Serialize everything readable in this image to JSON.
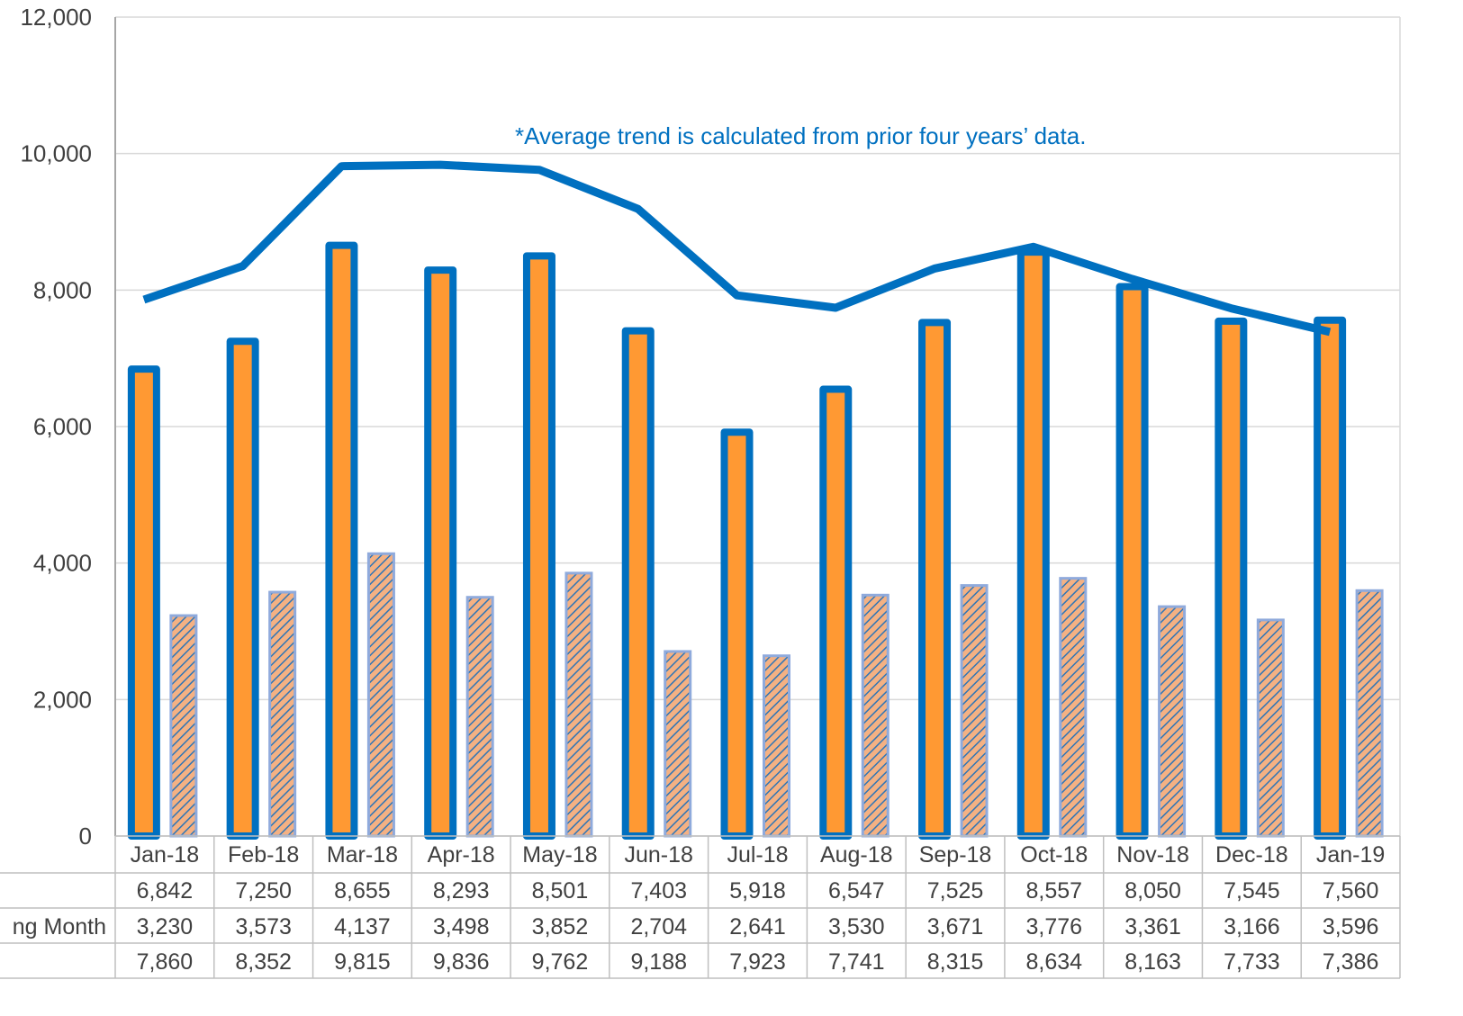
{
  "chart_data": {
    "type": "bar",
    "title": "",
    "xlabel": "",
    "ylabel": "",
    "ylim": [
      0,
      12000
    ],
    "y_ticks": [
      "0",
      "2,000",
      "4,000",
      "6,000",
      "8,000",
      "10,000",
      "12,000"
    ],
    "y_tick_values": [
      0,
      2000,
      4000,
      6000,
      8000,
      10000,
      12000
    ],
    "grid": true,
    "annotation": "*Average trend is calculated from prior four years’ data.",
    "categories": [
      "Jan-18",
      "Feb-18",
      "Mar-18",
      "Apr-18",
      "May-18",
      "Jun-18",
      "Jul-18",
      "Aug-18",
      "Sep-18",
      "Oct-18",
      "Nov-18",
      "Dec-18",
      "Jan-19"
    ],
    "series": [
      {
        "type": "bar",
        "style": "solid",
        "values": [
          6842,
          7250,
          8655,
          8293,
          8501,
          7403,
          5918,
          6547,
          7525,
          8557,
          8050,
          7545,
          7560
        ],
        "labels": [
          "6,842",
          "7,250",
          "8,655",
          "8,293",
          "8,501",
          "7,403",
          "5,918",
          "6,547",
          "7,525",
          "8,557",
          "8,050",
          "7,545",
          "7,560"
        ],
        "fill": "#FF9933",
        "stroke": "#0070C0"
      },
      {
        "type": "bar",
        "style": "hatched",
        "name_visible_fragment": "ng Month",
        "values": [
          3230,
          3573,
          4137,
          3498,
          3852,
          2704,
          2641,
          3530,
          3671,
          3776,
          3361,
          3166,
          3596
        ],
        "labels": [
          "3,230",
          "3,573",
          "4,137",
          "3,498",
          "3,852",
          "2,704",
          "2,641",
          "3,530",
          "3,671",
          "3,776",
          "3,361",
          "3,166",
          "3,596"
        ],
        "fill": "#F4B183",
        "stroke": "#8FAADC",
        "hatch": "#2E75B6"
      },
      {
        "type": "line",
        "values": [
          7860,
          8352,
          9815,
          9836,
          9762,
          9188,
          7923,
          7741,
          8315,
          8634,
          8163,
          7733,
          7386
        ],
        "labels": [
          "7,860",
          "8,352",
          "9,815",
          "9,836",
          "9,762",
          "9,188",
          "7,923",
          "7,741",
          "8,315",
          "8,634",
          "8,163",
          "7,733",
          "7,386"
        ],
        "stroke": "#0070C0"
      }
    ],
    "table_colors": {
      "border": "#BFBFBF",
      "text": "#404040",
      "grid": "#D9D9D9",
      "axis": "#A6A6A6",
      "annotation": "#0070C0"
    }
  }
}
